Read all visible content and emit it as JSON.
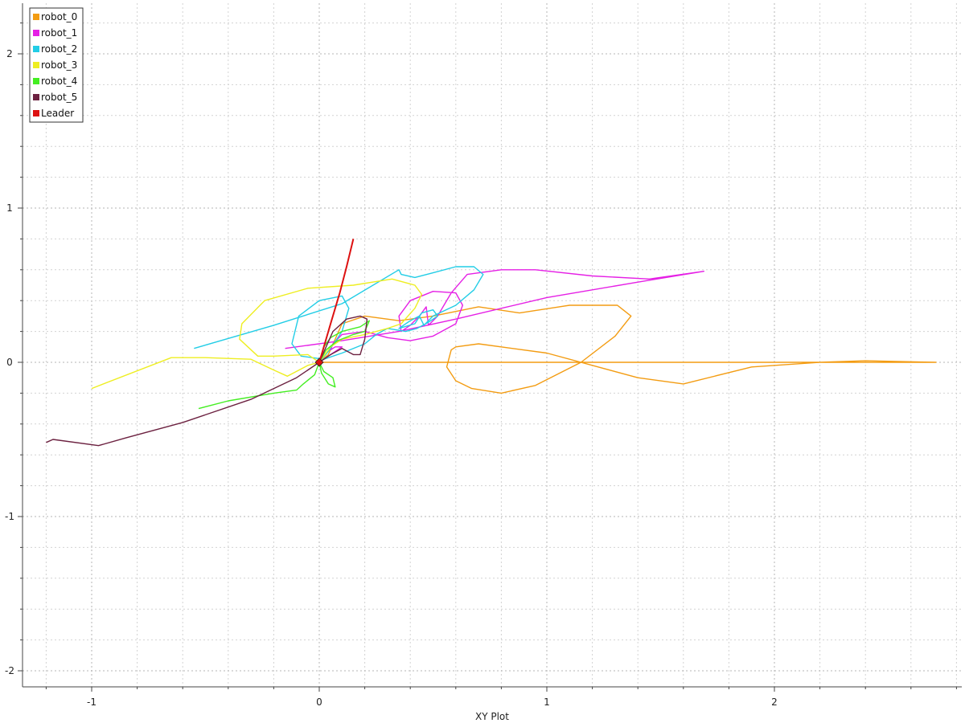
{
  "chart_data": {
    "type": "line",
    "title": "",
    "xlabel": "XY Plot",
    "ylabel": "",
    "xlim": [
      -1.3,
      2.8
    ],
    "ylim": [
      -2.1,
      2.3
    ],
    "x_ticks": [
      -1,
      0,
      1,
      2
    ],
    "y_ticks": [
      -2,
      -1,
      0,
      1,
      2
    ],
    "grid": true,
    "legend_position": "top-left",
    "series": [
      {
        "name": "robot_0",
        "color": "#f39c12",
        "points": [
          [
            0,
            0
          ],
          [
            2.71,
            0
          ],
          [
            2.4,
            0.01
          ],
          [
            2.2,
            0
          ],
          [
            1.9,
            -0.03
          ],
          [
            1.6,
            -0.14
          ],
          [
            1.4,
            -0.1
          ],
          [
            1.0,
            0.06
          ],
          [
            0.7,
            0.12
          ],
          [
            0.6,
            0.1
          ],
          [
            0.58,
            0.08
          ],
          [
            0.56,
            -0.03
          ],
          [
            0.6,
            -0.12
          ],
          [
            0.67,
            -0.17
          ],
          [
            0.8,
            -0.2
          ],
          [
            0.95,
            -0.15
          ],
          [
            1.15,
            0
          ],
          [
            1.3,
            0.17
          ],
          [
            1.37,
            0.3
          ],
          [
            1.31,
            0.37
          ],
          [
            1.1,
            0.37
          ],
          [
            0.88,
            0.32
          ],
          [
            0.7,
            0.36
          ],
          [
            0.5,
            0.3
          ],
          [
            0.35,
            0.27
          ],
          [
            0.2,
            0.3
          ],
          [
            0.1,
            0.25
          ],
          [
            0.04,
            0.05
          ],
          [
            0,
            0
          ]
        ]
      },
      {
        "name": "robot_1",
        "color": "#e520e5",
        "points": [
          [
            -0.15,
            0.09
          ],
          [
            0.1,
            0.14
          ],
          [
            0.35,
            0.2
          ],
          [
            0.6,
            0.28
          ],
          [
            1.0,
            0.42
          ],
          [
            1.4,
            0.52
          ],
          [
            1.69,
            0.59
          ],
          [
            1.45,
            0.54
          ],
          [
            1.2,
            0.56
          ],
          [
            0.95,
            0.6
          ],
          [
            0.8,
            0.6
          ],
          [
            0.65,
            0.57
          ],
          [
            0.58,
            0.45
          ],
          [
            0.54,
            0.35
          ],
          [
            0.52,
            0.3
          ],
          [
            0.5,
            0.27
          ],
          [
            0.48,
            0.24
          ],
          [
            0.47,
            0.36
          ],
          [
            0.44,
            0.3
          ],
          [
            0.4,
            0.24
          ],
          [
            0.36,
            0.2
          ],
          [
            0.35,
            0.3
          ],
          [
            0.4,
            0.4
          ],
          [
            0.5,
            0.46
          ],
          [
            0.6,
            0.45
          ],
          [
            0.63,
            0.37
          ],
          [
            0.6,
            0.25
          ],
          [
            0.5,
            0.17
          ],
          [
            0.4,
            0.14
          ],
          [
            0.3,
            0.16
          ],
          [
            0.2,
            0.2
          ],
          [
            0.1,
            0.18
          ],
          [
            0.06,
            0.12
          ],
          [
            0.05,
            0.08
          ],
          [
            0.07,
            0.1
          ],
          [
            0.1,
            0.1
          ],
          [
            0,
            0
          ]
        ]
      },
      {
        "name": "robot_2",
        "color": "#22cde6",
        "points": [
          [
            -0.55,
            0.09
          ],
          [
            -0.2,
            0.24
          ],
          [
            0.1,
            0.38
          ],
          [
            0.35,
            0.6
          ],
          [
            0.36,
            0.57
          ],
          [
            0.42,
            0.55
          ],
          [
            0.5,
            0.58
          ],
          [
            0.6,
            0.62
          ],
          [
            0.68,
            0.62
          ],
          [
            0.72,
            0.57
          ],
          [
            0.68,
            0.47
          ],
          [
            0.6,
            0.37
          ],
          [
            0.5,
            0.3
          ],
          [
            0.46,
            0.24
          ],
          [
            0.44,
            0.3
          ],
          [
            0.4,
            0.27
          ],
          [
            0.35,
            0.22
          ],
          [
            0.42,
            0.25
          ],
          [
            0.45,
            0.32
          ],
          [
            0.5,
            0.34
          ],
          [
            0.52,
            0.3
          ],
          [
            0.48,
            0.26
          ],
          [
            0.43,
            0.22
          ],
          [
            0.38,
            0.2
          ],
          [
            0.3,
            0.22
          ],
          [
            0.25,
            0.18
          ],
          [
            0.2,
            0.12
          ],
          [
            0.1,
            0.06
          ],
          [
            0.02,
            0.02
          ],
          [
            -0.08,
            0.04
          ],
          [
            -0.12,
            0.12
          ],
          [
            -0.09,
            0.3
          ],
          [
            0.0,
            0.4
          ],
          [
            0.1,
            0.43
          ],
          [
            0.13,
            0.35
          ],
          [
            0.1,
            0.2
          ],
          [
            0.04,
            0.07
          ],
          [
            0,
            0
          ]
        ]
      },
      {
        "name": "robot_3",
        "color": "#eeee22",
        "points": [
          [
            -1.0,
            -0.17
          ],
          [
            -0.65,
            0.03
          ],
          [
            -0.5,
            0.03
          ],
          [
            -0.3,
            0.02
          ],
          [
            -0.2,
            -0.05
          ],
          [
            -0.14,
            -0.09
          ],
          [
            -0.05,
            -0.02
          ],
          [
            0,
            0
          ],
          [
            -0.05,
            0.05
          ],
          [
            -0.2,
            0.04
          ],
          [
            -0.27,
            0.04
          ],
          [
            -0.35,
            0.15
          ],
          [
            -0.34,
            0.25
          ],
          [
            -0.24,
            0.4
          ],
          [
            -0.05,
            0.48
          ],
          [
            0.15,
            0.5
          ],
          [
            0.32,
            0.54
          ],
          [
            0.42,
            0.5
          ],
          [
            0.45,
            0.44
          ],
          [
            0.42,
            0.35
          ],
          [
            0.36,
            0.25
          ],
          [
            0.3,
            0.22
          ],
          [
            0.2,
            0.18
          ],
          [
            0.1,
            0.15
          ],
          [
            0.05,
            0.1
          ],
          [
            0,
            0
          ]
        ]
      },
      {
        "name": "robot_4",
        "color": "#44ee22",
        "points": [
          [
            -0.53,
            -0.3
          ],
          [
            -0.4,
            -0.25
          ],
          [
            -0.2,
            -0.2
          ],
          [
            -0.1,
            -0.18
          ],
          [
            -0.07,
            -0.14
          ],
          [
            -0.02,
            -0.08
          ],
          [
            0,
            0
          ],
          [
            0.01,
            -0.07
          ],
          [
            0.04,
            -0.14
          ],
          [
            0.07,
            -0.16
          ],
          [
            0.06,
            -0.1
          ],
          [
            0.02,
            -0.06
          ],
          [
            0,
            0
          ],
          [
            0.02,
            0.1
          ],
          [
            0.05,
            0.16
          ],
          [
            0.1,
            0.2
          ],
          [
            0.18,
            0.23
          ],
          [
            0.22,
            0.27
          ],
          [
            0.2,
            0.2
          ],
          [
            0.15,
            0.18
          ],
          [
            0.08,
            0.14
          ],
          [
            0.03,
            0.08
          ],
          [
            0,
            0
          ]
        ]
      },
      {
        "name": "robot_5",
        "color": "#6c2140",
        "points": [
          [
            -1.2,
            -0.52
          ],
          [
            -1.17,
            -0.5
          ],
          [
            -0.97,
            -0.54
          ],
          [
            -0.85,
            -0.49
          ],
          [
            -0.6,
            -0.39
          ],
          [
            -0.3,
            -0.24
          ],
          [
            -0.1,
            -0.1
          ],
          [
            0,
            0
          ],
          [
            0.05,
            0.05
          ],
          [
            0.1,
            0.09
          ],
          [
            0.15,
            0.05
          ],
          [
            0.18,
            0.05
          ],
          [
            0.2,
            0.15
          ],
          [
            0.21,
            0.28
          ],
          [
            0.18,
            0.3
          ],
          [
            0.12,
            0.28
          ],
          [
            0.06,
            0.2
          ],
          [
            0.03,
            0.1
          ],
          [
            0,
            0
          ]
        ]
      },
      {
        "name": "Leader",
        "color": "#dd1111",
        "points": [
          [
            0,
            0
          ],
          [
            0.02,
            0.1
          ],
          [
            0.05,
            0.25
          ],
          [
            0.09,
            0.45
          ],
          [
            0.12,
            0.62
          ],
          [
            0.15,
            0.8
          ]
        ]
      }
    ],
    "markers": [
      {
        "name": "Leader",
        "color": "#dd1111",
        "x": 0,
        "y": 0
      }
    ]
  }
}
